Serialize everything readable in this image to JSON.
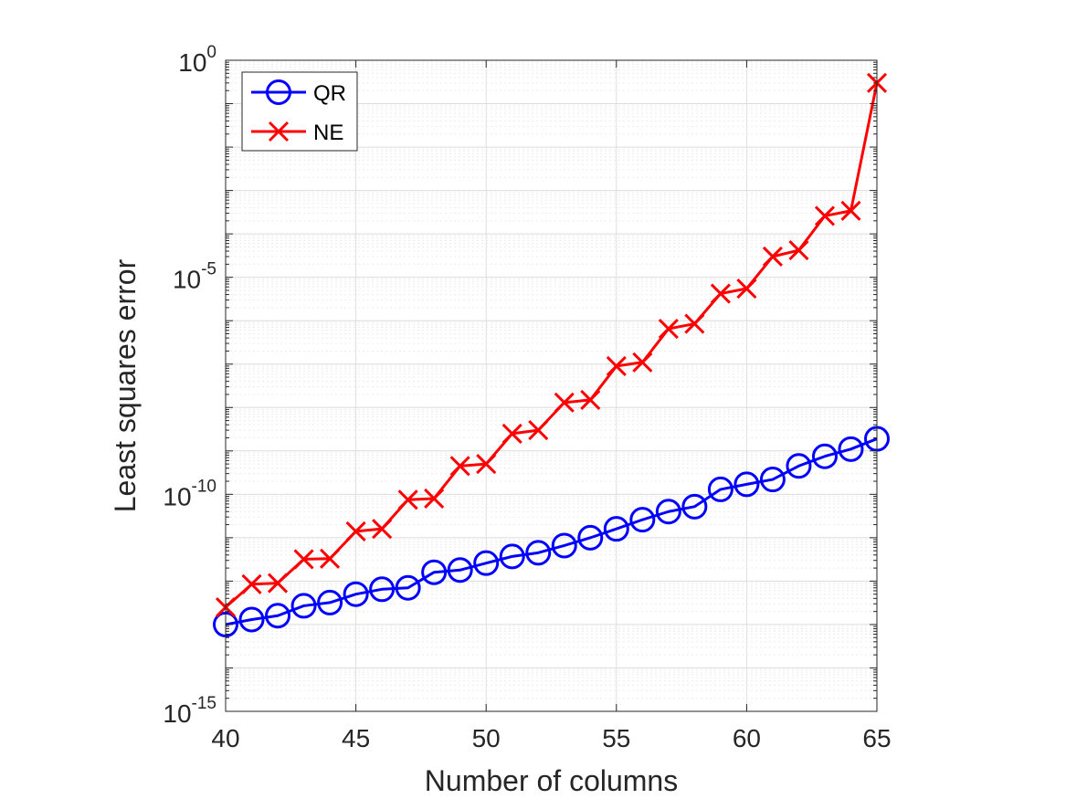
{
  "chart_data": {
    "type": "line",
    "title": "",
    "xlabel": "Number of columns",
    "ylabel": "Least squares error",
    "xlim": [
      40,
      65
    ],
    "ylim": [
      1e-15,
      1
    ],
    "yscale": "log",
    "grid": true,
    "legend_position": "top-left",
    "x": [
      40,
      41,
      42,
      43,
      44,
      45,
      46,
      47,
      48,
      49,
      50,
      51,
      52,
      53,
      54,
      55,
      56,
      57,
      58,
      59,
      60,
      61,
      62,
      63,
      64,
      65
    ],
    "xticks": [
      {
        "value": 40,
        "label": "40"
      },
      {
        "value": 45,
        "label": "45"
      },
      {
        "value": 50,
        "label": "50"
      },
      {
        "value": 55,
        "label": "55"
      },
      {
        "value": 60,
        "label": "60"
      },
      {
        "value": 65,
        "label": "65"
      }
    ],
    "yticks": [
      {
        "value": 1.0,
        "base": "10",
        "exp": "0"
      },
      {
        "value": 1e-05,
        "base": "10",
        "exp": "-5"
      },
      {
        "value": 1e-10,
        "base": "10",
        "exp": "-10"
      },
      {
        "value": 1e-15,
        "base": "10",
        "exp": "-15"
      }
    ],
    "series": [
      {
        "name": "QR",
        "color": "#0000ff",
        "marker": "circle",
        "values": [
          1e-13,
          1.3e-13,
          1.6e-13,
          2.7e-13,
          3.2e-13,
          5e-13,
          6.5e-13,
          7e-13,
          1.6e-12,
          1.8e-12,
          2.6e-12,
          3.7e-12,
          4.5e-12,
          6.6e-12,
          1e-11,
          1.6e-11,
          2.6e-11,
          4e-11,
          5.2e-11,
          1.3e-10,
          1.7e-10,
          2.2e-10,
          4.5e-10,
          7.5e-10,
          1.1e-09,
          1.9e-09
        ]
      },
      {
        "name": "NE",
        "color": "#ff0000",
        "marker": "x",
        "values": [
          2.5e-13,
          8.5e-13,
          9e-13,
          3.2e-12,
          3.3e-12,
          1.4e-11,
          1.6e-11,
          7.5e-11,
          8e-11,
          4.5e-10,
          5e-10,
          2.5e-09,
          3e-09,
          1.3e-08,
          1.5e-08,
          9e-08,
          1.1e-07,
          6.5e-07,
          8.5e-07,
          4.2e-06,
          5.5e-06,
          3e-05,
          4.2e-05,
          0.00026,
          0.00034,
          0.3
        ]
      }
    ]
  }
}
